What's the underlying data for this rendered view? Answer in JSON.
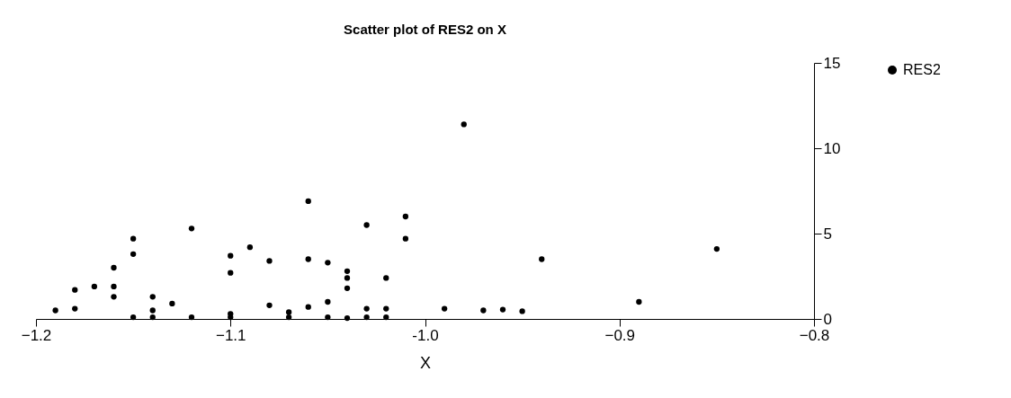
{
  "chart_data": {
    "type": "scatter",
    "title": "Scatter plot of RES2 on X",
    "xlabel": "X",
    "x": [
      -1.19,
      -1.18,
      -1.18,
      -1.17,
      -1.16,
      -1.16,
      -1.16,
      -1.15,
      -1.15,
      -1.15,
      -1.14,
      -1.14,
      -1.14,
      -1.13,
      -1.12,
      -1.12,
      -1.1,
      -1.1,
      -1.1,
      -1.1,
      -1.09,
      -1.08,
      -1.08,
      -1.07,
      -1.07,
      -1.06,
      -1.06,
      -1.06,
      -1.05,
      -1.05,
      -1.05,
      -1.04,
      -1.04,
      -1.04,
      -1.04,
      -1.03,
      -1.03,
      -1.03,
      -1.02,
      -1.02,
      -1.02,
      -1.01,
      -1.01,
      -0.99,
      -0.98,
      -0.97,
      -0.96,
      -0.95,
      -0.94,
      -0.89,
      -0.85
    ],
    "series": [
      {
        "name": "RES2",
        "color": "#000000",
        "values": [
          0.5,
          1.7,
          0.6,
          1.9,
          3.0,
          1.9,
          1.3,
          4.7,
          3.8,
          0.1,
          1.3,
          0.5,
          0.1,
          0.9,
          5.3,
          0.1,
          3.7,
          2.7,
          0.3,
          0.1,
          4.2,
          3.4,
          0.8,
          0.4,
          0.1,
          6.9,
          3.5,
          0.7,
          3.3,
          1.0,
          0.1,
          2.8,
          2.4,
          1.8,
          0.05,
          5.5,
          0.6,
          0.1,
          2.4,
          0.6,
          0.1,
          6.0,
          4.7,
          0.6,
          11.4,
          0.5,
          0.55,
          0.45,
          3.5,
          1.0,
          4.1
        ]
      }
    ],
    "xlim": [
      -1.2,
      -0.8
    ],
    "xticks": [
      -1.2,
      -1.1,
      {
        "value": -1,
        "label": "-1.0"
      },
      -0.9,
      -0.8
    ],
    "ylim": [
      0,
      15
    ],
    "yticks": [
      0,
      5,
      10,
      15
    ],
    "grid": false,
    "legend": "right",
    "marker": "circle"
  }
}
